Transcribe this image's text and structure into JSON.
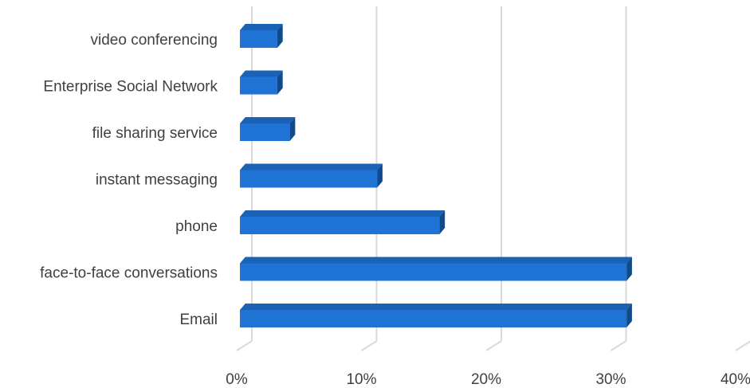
{
  "chart_data": {
    "type": "bar",
    "orientation": "horizontal",
    "style": "3d",
    "title": "",
    "xlabel": "",
    "ylabel": "",
    "categories": [
      "video conferencing",
      "Enterprise Social Network",
      "file sharing service",
      "instant messaging",
      "phone",
      "face-to-face conversations",
      "Email"
    ],
    "values": [
      3,
      3,
      4,
      11,
      16,
      31,
      31
    ],
    "value_unit": "percent",
    "xlim": [
      0,
      40
    ],
    "x_ticks": [
      0,
      10,
      20,
      30,
      40
    ],
    "x_tick_labels": [
      "0%",
      "10%",
      "20%",
      "30%",
      "40%"
    ],
    "grid": "vertical",
    "legend": "none",
    "colors": {
      "bar_front": "#1f73d4",
      "bar_top": "#1a62b6",
      "bar_side": "#0e4a8c",
      "gridline": "#d9d9d9",
      "text": "#404040"
    }
  }
}
